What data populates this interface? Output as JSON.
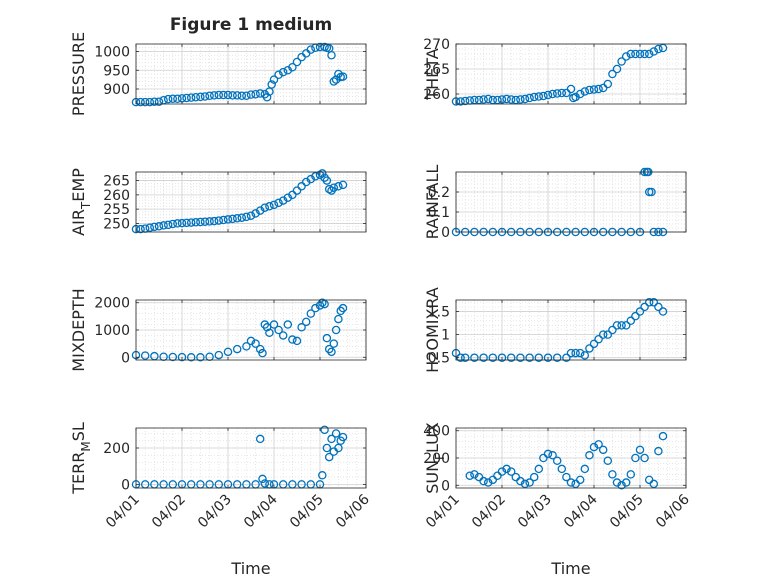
{
  "figure": {
    "title": "Figure 1 medium",
    "marker_color": "#0072bd"
  },
  "chart_data": [
    {
      "type": "scatter",
      "title": "Figure 1 medium",
      "ylabel": "PRESSURE",
      "xlabel": "",
      "x_tick_labels_shown": false,
      "ylim": [
        860,
        1020
      ],
      "yticks": [
        900,
        950,
        1000
      ],
      "xlim": [
        0,
        5
      ],
      "xticks": [
        0,
        1,
        2,
        3,
        4,
        5
      ],
      "grid": true,
      "series": [
        {
          "marker": "open-circle",
          "x": [
            0,
            0.1,
            0.2,
            0.3,
            0.4,
            0.5,
            0.6,
            0.7,
            0.8,
            0.9,
            1.0,
            1.1,
            1.2,
            1.3,
            1.4,
            1.5,
            1.6,
            1.7,
            1.8,
            1.9,
            2.0,
            2.1,
            2.2,
            2.3,
            2.4,
            2.5,
            2.6,
            2.7,
            2.8,
            2.85,
            2.9,
            2.95,
            3.0,
            3.1,
            3.2,
            3.3,
            3.4,
            3.5,
            3.6,
            3.7,
            3.8,
            3.9,
            4.0,
            4.1,
            4.15,
            4.2,
            4.25,
            4.3,
            4.35,
            4.4,
            4.45,
            4.5
          ],
          "y": [
            865,
            865,
            865,
            865,
            866,
            866,
            870,
            873,
            874,
            874,
            875,
            876,
            877,
            878,
            879,
            880,
            882,
            883,
            884,
            884,
            884,
            883,
            883,
            882,
            882,
            885,
            886,
            888,
            886,
            878,
            893,
            912,
            925,
            938,
            945,
            950,
            958,
            972,
            985,
            995,
            1005,
            1010,
            1012,
            1012,
            1010,
            1008,
            990,
            920,
            925,
            940,
            932,
            933
          ]
        }
      ]
    },
    {
      "type": "scatter",
      "title": "",
      "ylabel": "THETA",
      "xlabel": "",
      "x_tick_labels_shown": false,
      "ylim": [
        258,
        270
      ],
      "yticks": [
        260,
        265,
        270
      ],
      "xlim": [
        0,
        5
      ],
      "xticks": [
        0,
        1,
        2,
        3,
        4,
        5
      ],
      "grid": true,
      "series": [
        {
          "marker": "open-circle",
          "x": [
            0,
            0.1,
            0.2,
            0.3,
            0.4,
            0.5,
            0.6,
            0.7,
            0.8,
            0.9,
            1.0,
            1.1,
            1.2,
            1.3,
            1.4,
            1.5,
            1.6,
            1.7,
            1.8,
            1.9,
            2.0,
            2.1,
            2.2,
            2.3,
            2.4,
            2.5,
            2.55,
            2.6,
            2.7,
            2.8,
            2.9,
            3.0,
            3.1,
            3.2,
            3.3,
            3.4,
            3.5,
            3.6,
            3.7,
            3.8,
            3.9,
            4.0,
            4.1,
            4.2,
            4.3,
            4.4,
            4.5
          ],
          "y": [
            258.5,
            258.5,
            258.6,
            258.7,
            258.8,
            258.8,
            258.9,
            259.0,
            258.8,
            258.8,
            258.9,
            259.0,
            258.9,
            258.8,
            258.9,
            259.0,
            259.2,
            259.4,
            259.5,
            259.6,
            259.8,
            260.0,
            260.1,
            260.2,
            260.2,
            261.0,
            259.2,
            259.4,
            260.0,
            260.5,
            260.8,
            260.9,
            261.0,
            261.2,
            262.0,
            264.0,
            265.0,
            266.5,
            267.5,
            268.0,
            268.0,
            268.0,
            268.0,
            268.0,
            268.5,
            269.0,
            269.2
          ]
        }
      ]
    },
    {
      "type": "scatter",
      "title": "",
      "ylabel": "AIR_TEMP",
      "ylabel_main": "AIR",
      "ylabel_sub": "T",
      "ylabel_rest": "EMP",
      "xlabel": "",
      "x_tick_labels_shown": false,
      "ylim": [
        247,
        268
      ],
      "yticks": [
        250,
        255,
        260,
        265
      ],
      "xlim": [
        0,
        5
      ],
      "xticks": [
        0,
        1,
        2,
        3,
        4,
        5
      ],
      "grid": true,
      "series": [
        {
          "marker": "open-circle",
          "x": [
            0,
            0.1,
            0.2,
            0.3,
            0.4,
            0.5,
            0.6,
            0.7,
            0.8,
            0.9,
            1.0,
            1.1,
            1.2,
            1.3,
            1.4,
            1.5,
            1.6,
            1.7,
            1.8,
            1.9,
            2.0,
            2.1,
            2.2,
            2.3,
            2.4,
            2.5,
            2.6,
            2.7,
            2.8,
            2.9,
            3.0,
            3.1,
            3.2,
            3.3,
            3.4,
            3.5,
            3.6,
            3.7,
            3.8,
            3.9,
            4.0,
            4.05,
            4.1,
            4.15,
            4.2,
            4.25,
            4.3,
            4.4,
            4.5
          ],
          "y": [
            248,
            248,
            248.2,
            248.5,
            248.8,
            249,
            249.3,
            249.5,
            249.8,
            250,
            250.1,
            250.2,
            250.3,
            250.4,
            250.5,
            250.6,
            250.7,
            250.8,
            251,
            251.2,
            251.4,
            251.6,
            251.8,
            252,
            252.3,
            252.7,
            253.5,
            254.5,
            255.5,
            256,
            256.5,
            257.2,
            258,
            259,
            260,
            261.5,
            263,
            264.5,
            265.5,
            266.5,
            267,
            267.5,
            266,
            265,
            262,
            261.5,
            262.5,
            263,
            263.5
          ]
        }
      ]
    },
    {
      "type": "scatter",
      "title": "",
      "ylabel": "RAINFALL",
      "xlabel": "",
      "x_tick_labels_shown": false,
      "ylim": [
        0,
        0.3
      ],
      "yticks": [
        0,
        0.1,
        0.2
      ],
      "xlim": [
        0,
        5
      ],
      "xticks": [
        0,
        1,
        2,
        3,
        4,
        5
      ],
      "grid": true,
      "series": [
        {
          "marker": "open-circle",
          "x": [
            0,
            0.2,
            0.4,
            0.6,
            0.8,
            1.0,
            1.2,
            1.4,
            1.6,
            1.8,
            2.0,
            2.2,
            2.4,
            2.6,
            2.8,
            3.0,
            3.2,
            3.4,
            3.6,
            3.8,
            4.0,
            4.1,
            4.15,
            4.18,
            4.2,
            4.25,
            4.3,
            4.4,
            4.5
          ],
          "y": [
            0,
            0,
            0,
            0,
            0,
            0,
            0,
            0,
            0,
            0,
            0,
            0,
            0,
            0,
            0,
            0,
            0,
            0,
            0,
            0,
            0,
            0.3,
            0.3,
            0.3,
            0.2,
            0.2,
            0,
            0,
            0
          ]
        }
      ]
    },
    {
      "type": "scatter",
      "title": "",
      "ylabel": "MIXDEPTH",
      "xlabel": "",
      "x_tick_labels_shown": false,
      "ylim": [
        -100,
        2100
      ],
      "yticks": [
        0,
        1000,
        2000
      ],
      "xlim": [
        0,
        5
      ],
      "xticks": [
        0,
        1,
        2,
        3,
        4,
        5
      ],
      "grid": true,
      "series": [
        {
          "marker": "open-circle",
          "x": [
            0,
            0.2,
            0.4,
            0.6,
            0.8,
            1.0,
            1.2,
            1.4,
            1.6,
            1.8,
            2.0,
            2.2,
            2.4,
            2.5,
            2.6,
            2.7,
            2.75,
            2.8,
            2.85,
            2.9,
            3.0,
            3.1,
            3.2,
            3.3,
            3.4,
            3.5,
            3.6,
            3.7,
            3.8,
            3.9,
            4.0,
            4.05,
            4.1,
            4.15,
            4.2,
            4.25,
            4.3,
            4.35,
            4.4,
            4.45,
            4.5
          ],
          "y": [
            80,
            60,
            40,
            20,
            10,
            5,
            0,
            0,
            20,
            80,
            200,
            300,
            400,
            600,
            500,
            300,
            150,
            1200,
            1100,
            900,
            1200,
            1000,
            800,
            1200,
            650,
            600,
            1100,
            1300,
            1600,
            1800,
            1900,
            2000,
            1950,
            700,
            300,
            200,
            500,
            1000,
            1400,
            1700,
            1800
          ]
        }
      ]
    },
    {
      "type": "scatter",
      "title": "",
      "ylabel": "H2OMIXRA",
      "xlabel": "",
      "x_tick_labels_shown": false,
      "ylim": [
        0.45,
        1.75
      ],
      "yticks": [
        0.5,
        1,
        1.5
      ],
      "xlim": [
        0,
        5
      ],
      "xticks": [
        0,
        1,
        2,
        3,
        4,
        5
      ],
      "grid": true,
      "series": [
        {
          "marker": "open-circle",
          "x": [
            0,
            0.1,
            0.2,
            0.4,
            0.6,
            0.8,
            1.0,
            1.2,
            1.4,
            1.6,
            1.8,
            2.0,
            2.2,
            2.4,
            2.5,
            2.6,
            2.7,
            2.8,
            2.9,
            3.0,
            3.1,
            3.2,
            3.3,
            3.4,
            3.5,
            3.6,
            3.7,
            3.8,
            3.9,
            4.0,
            4.1,
            4.2,
            4.3,
            4.4,
            4.5
          ],
          "y": [
            0.6,
            0.5,
            0.5,
            0.5,
            0.5,
            0.5,
            0.5,
            0.5,
            0.5,
            0.5,
            0.5,
            0.5,
            0.5,
            0.5,
            0.6,
            0.6,
            0.6,
            0.55,
            0.7,
            0.8,
            0.9,
            1.0,
            1.0,
            1.1,
            1.2,
            1.2,
            1.2,
            1.3,
            1.4,
            1.5,
            1.6,
            1.7,
            1.7,
            1.6,
            1.5
          ]
        }
      ]
    },
    {
      "type": "scatter",
      "title": "",
      "ylabel": "TERR_MSL",
      "ylabel_main": "TERR",
      "ylabel_sub": "M",
      "ylabel_rest": "SL",
      "xlabel": "Time",
      "x_tick_labels_shown": true,
      "xtick_labels": [
        "04/01",
        "04/02",
        "04/03",
        "04/04",
        "04/05",
        "04/06"
      ],
      "ylim": [
        -20,
        310
      ],
      "yticks": [
        0,
        200
      ],
      "xlim": [
        0,
        5
      ],
      "xticks": [
        0,
        1,
        2,
        3,
        4,
        5
      ],
      "grid": true,
      "series": [
        {
          "marker": "open-circle",
          "x": [
            0,
            0.2,
            0.4,
            0.6,
            0.8,
            1.0,
            1.2,
            1.4,
            1.6,
            1.8,
            2.0,
            2.2,
            2.4,
            2.6,
            2.7,
            2.75,
            2.8,
            2.9,
            3.0,
            3.2,
            3.4,
            3.6,
            3.8,
            4.0,
            4.05,
            4.1,
            4.15,
            4.2,
            4.25,
            4.3,
            4.35,
            4.4,
            4.45,
            4.5
          ],
          "y": [
            0,
            0,
            0,
            0,
            0,
            0,
            0,
            0,
            0,
            0,
            0,
            0,
            0,
            0,
            250,
            30,
            5,
            0,
            0,
            0,
            0,
            0,
            0,
            0,
            50,
            300,
            200,
            150,
            250,
            180,
            280,
            200,
            240,
            260
          ]
        }
      ]
    },
    {
      "type": "scatter",
      "title": "",
      "ylabel": "SUN_FLUX",
      "ylabel_main": "SUN",
      "ylabel_sub": "F",
      "ylabel_rest": "LUX",
      "xlabel": "Time",
      "x_tick_labels_shown": true,
      "xtick_labels": [
        "04/01",
        "04/02",
        "04/03",
        "04/04",
        "04/05",
        "04/06"
      ],
      "ylim": [
        -20,
        420
      ],
      "yticks": [
        0,
        200,
        400
      ],
      "xlim": [
        0,
        5
      ],
      "xticks": [
        0,
        1,
        2,
        3,
        4,
        5
      ],
      "grid": true,
      "series": [
        {
          "marker": "open-circle",
          "x": [
            0.3,
            0.4,
            0.5,
            0.6,
            0.7,
            0.8,
            0.9,
            1.0,
            1.1,
            1.2,
            1.3,
            1.4,
            1.5,
            1.6,
            1.7,
            1.8,
            1.9,
            2.0,
            2.1,
            2.2,
            2.3,
            2.4,
            2.5,
            2.6,
            2.7,
            2.8,
            2.9,
            3.0,
            3.1,
            3.2,
            3.3,
            3.4,
            3.5,
            3.6,
            3.7,
            3.8,
            3.9,
            4.0,
            4.1,
            4.2,
            4.3,
            4.4,
            4.5
          ],
          "y": [
            70,
            80,
            60,
            30,
            20,
            40,
            70,
            100,
            120,
            100,
            60,
            30,
            10,
            20,
            60,
            120,
            200,
            230,
            220,
            180,
            120,
            60,
            20,
            10,
            40,
            120,
            220,
            280,
            300,
            260,
            180,
            80,
            20,
            0,
            20,
            80,
            200,
            260,
            200,
            40,
            10,
            250,
            360
          ]
        }
      ]
    }
  ]
}
